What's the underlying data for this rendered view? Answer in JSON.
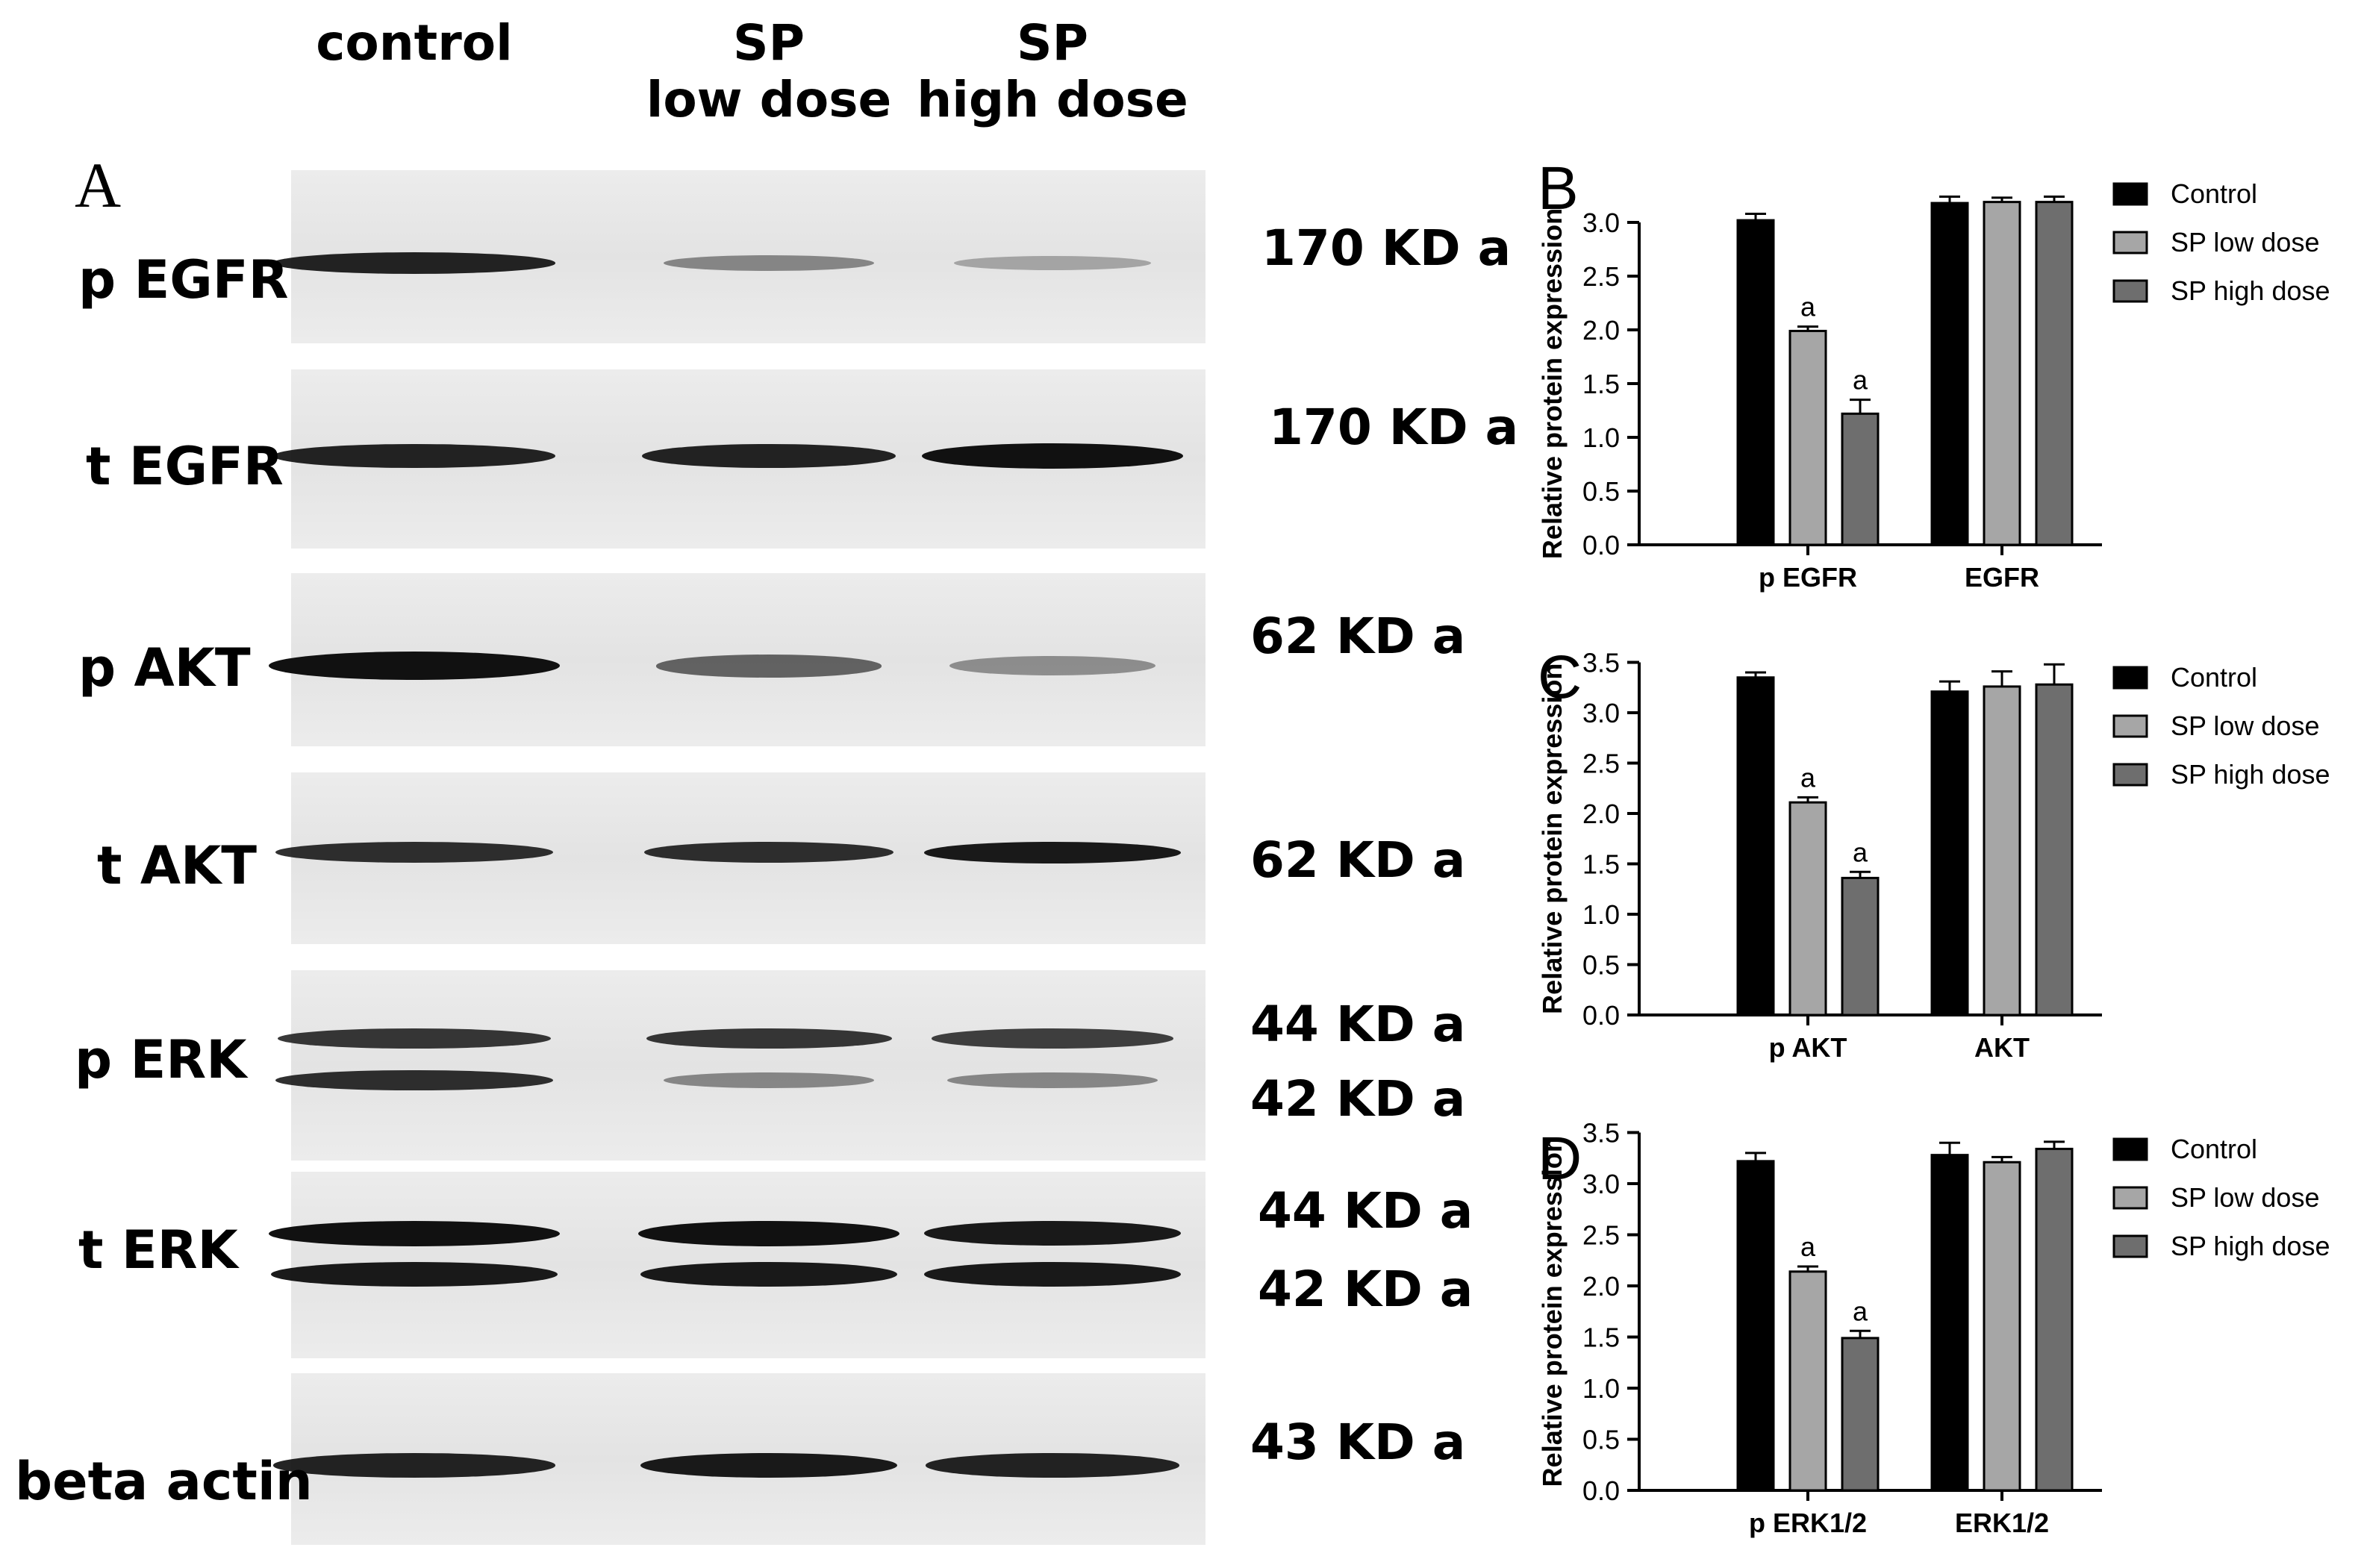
{
  "panel_a": {
    "letter": "A",
    "lanes": [
      "control",
      "SP low dose",
      "SP high dose"
    ],
    "lane_lines": [
      [
        "control"
      ],
      [
        "SP",
        "low dose"
      ],
      [
        "SP",
        "high dose"
      ]
    ],
    "blots": [
      {
        "name": "p EGFR",
        "kd": [
          "170 KD a"
        ],
        "bands": [
          [
            0.9
          ],
          [
            0.35
          ],
          [
            0.18
          ]
        ]
      },
      {
        "name": "t EGFR",
        "kd": [
          "170 KD a"
        ],
        "bands": [
          [
            0.9
          ],
          [
            0.9
          ],
          [
            1.0
          ]
        ]
      },
      {
        "name": "p AKT",
        "kd": [
          "62 KD a"
        ],
        "bands": [
          [
            1.0
          ],
          [
            0.55
          ],
          [
            0.3
          ]
        ]
      },
      {
        "name": "t AKT",
        "kd": [
          "62 KD a"
        ],
        "bands": [
          [
            0.85
          ],
          [
            0.85
          ],
          [
            0.95
          ]
        ]
      },
      {
        "name": "p ERK",
        "kd": [
          "44 KD a",
          "42 KD a"
        ],
        "bands": [
          [
            0.8,
            0.85
          ],
          [
            0.8,
            0.35
          ],
          [
            0.75,
            0.35
          ]
        ]
      },
      {
        "name": "t ERK",
        "kd": [
          "44 KD a",
          "42 KD a"
        ],
        "bands": [
          [
            1.0,
            0.95
          ],
          [
            1.0,
            0.95
          ],
          [
            0.95,
            0.95
          ]
        ]
      },
      {
        "name": "beta actin",
        "kd": [
          "43 KD a"
        ],
        "bands": [
          [
            0.9
          ],
          [
            0.95
          ],
          [
            0.9
          ]
        ]
      }
    ]
  },
  "colors": {
    "control": "#000000",
    "sp_low": "#a6a6a6",
    "sp_high": "#6e6e6e",
    "band": "#111111",
    "blot_bg": "#e6e6e6"
  },
  "chart_data": [
    {
      "panel": "B",
      "type": "bar",
      "categories": [
        "p EGFR",
        "EGFR"
      ],
      "ylabel": "Relative protein expression",
      "ylim": [
        0,
        3.0
      ],
      "yticks": [
        "0.0",
        "0.5",
        "1.0",
        "1.5",
        "2.0",
        "2.5",
        "3.0"
      ],
      "legend": "right",
      "series": [
        {
          "name": "Control",
          "values": [
            3.02,
            3.18
          ],
          "errors": [
            0.06,
            0.06
          ],
          "labels": [
            "",
            ""
          ]
        },
        {
          "name": "SP low dose",
          "values": [
            1.99,
            3.19
          ],
          "errors": [
            0.04,
            0.04
          ],
          "labels": [
            "a",
            ""
          ]
        },
        {
          "name": "SP high dose",
          "values": [
            1.22,
            3.19
          ],
          "errors": [
            0.13,
            0.05
          ],
          "labels": [
            "a",
            ""
          ]
        }
      ]
    },
    {
      "panel": "C",
      "type": "bar",
      "categories": [
        "p AKT",
        "AKT"
      ],
      "ylabel": "Relative protein expression",
      "ylim": [
        0,
        3.5
      ],
      "yticks": [
        "0.0",
        "0.5",
        "1.0",
        "1.5",
        "2.0",
        "2.5",
        "3.0",
        "3.5"
      ],
      "legend": "right",
      "series": [
        {
          "name": "Control",
          "values": [
            3.35,
            3.21
          ],
          "errors": [
            0.05,
            0.1
          ],
          "labels": [
            "",
            ""
          ]
        },
        {
          "name": "SP low dose",
          "values": [
            2.11,
            3.26
          ],
          "errors": [
            0.05,
            0.15
          ],
          "labels": [
            "a",
            ""
          ]
        },
        {
          "name": "SP high dose",
          "values": [
            1.36,
            3.28
          ],
          "errors": [
            0.06,
            0.2
          ],
          "labels": [
            "a",
            ""
          ]
        }
      ]
    },
    {
      "panel": "D",
      "type": "bar",
      "categories": [
        "p ERK1/2",
        "ERK1/2"
      ],
      "ylabel": "Relative protein expression",
      "ylim": [
        0,
        3.5
      ],
      "yticks": [
        "0.0",
        "0.5",
        "1.0",
        "1.5",
        "2.0",
        "2.5",
        "3.0",
        "3.5"
      ],
      "legend": "right",
      "series": [
        {
          "name": "Control",
          "values": [
            3.22,
            3.28
          ],
          "errors": [
            0.08,
            0.12
          ],
          "labels": [
            "",
            ""
          ]
        },
        {
          "name": "SP low dose",
          "values": [
            2.14,
            3.21
          ],
          "errors": [
            0.05,
            0.05
          ],
          "labels": [
            "a",
            ""
          ]
        },
        {
          "name": "SP high dose",
          "values": [
            1.49,
            3.34
          ],
          "errors": [
            0.07,
            0.07
          ],
          "labels": [
            "a",
            ""
          ]
        }
      ]
    }
  ]
}
